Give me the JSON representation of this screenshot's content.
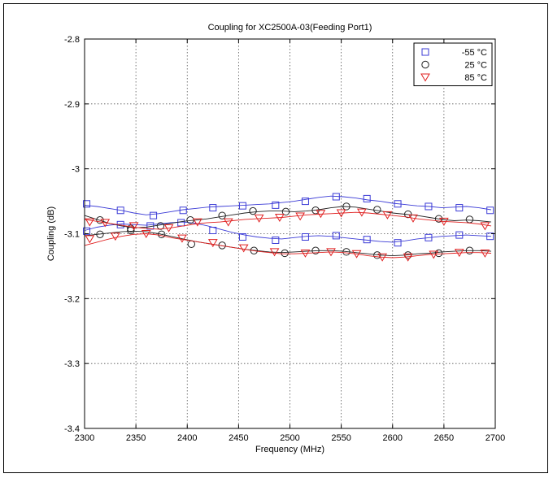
{
  "chart_data": {
    "type": "line",
    "title": "Coupling for XC2500A-03(Feeding Port1)",
    "xlabel": "Frequency (MHz)",
    "ylabel": "Coupling (dB)",
    "xlim": [
      2300,
      2700
    ],
    "ylim": [
      -3.4,
      -2.8
    ],
    "x_ticks": [
      2300,
      2350,
      2400,
      2450,
      2500,
      2550,
      2600,
      2650,
      2700
    ],
    "y_ticks": [
      -3.4,
      -3.3,
      -3.2,
      -3.1,
      -3.0,
      -2.9,
      -2.8
    ],
    "x_tick_labels": [
      "2300",
      "2350",
      "2400",
      "2450",
      "2500",
      "2550",
      "2600",
      "2650",
      "2700"
    ],
    "y_tick_labels": [
      "-3.4",
      "-3.3",
      "-3.2",
      "-3.1",
      "-3",
      "-2.9",
      "-2.8"
    ],
    "grid": true,
    "legend_position": "top-right",
    "legend": [
      {
        "label": "-55 °C",
        "marker": "square",
        "color": "#3b3bd6"
      },
      {
        "label": "25 °C",
        "marker": "circle",
        "color": "#222222"
      },
      {
        "label": "85 °C",
        "marker": "triangle-down",
        "color": "#e02020"
      }
    ],
    "series": [
      {
        "name": "-55 °C",
        "marker": "square",
        "color": "#3b3bd6",
        "x": [
          2300,
          2312,
          2324,
          2336,
          2348,
          2360,
          2372,
          2384,
          2396,
          2408,
          2420,
          2432,
          2444,
          2456,
          2468,
          2480,
          2492,
          2504,
          2516,
          2528,
          2540,
          2552,
          2564,
          2576,
          2588,
          2600,
          2612,
          2624,
          2636,
          2648,
          2660,
          2672,
          2684,
          2696
        ],
        "y": [
          -3.056,
          -3.058,
          -3.061,
          -3.064,
          -3.068,
          -3.071,
          -3.069,
          -3.066,
          -3.063,
          -3.061,
          -3.059,
          -3.058,
          -3.057,
          -3.056,
          -3.055,
          -3.054,
          -3.052,
          -3.05,
          -3.047,
          -3.044,
          -3.042,
          -3.043,
          -3.045,
          -3.048,
          -3.05,
          -3.053,
          -3.055,
          -3.057,
          -3.058,
          -3.06,
          -3.059,
          -3.058,
          -3.06,
          -3.063
        ],
        "markers_x": [
          2302,
          2335,
          2367,
          2396,
          2425,
          2454,
          2486,
          2515,
          2545,
          2575,
          2605,
          2635,
          2665,
          2695
        ],
        "markers_y": [
          -3.054,
          -3.064,
          -3.072,
          -3.064,
          -3.06,
          -3.057,
          -3.056,
          -3.05,
          -3.043,
          -3.046,
          -3.054,
          -3.058,
          -3.06,
          -3.064
        ]
      },
      {
        "name": "-55 °C",
        "marker": "square",
        "color": "#3b3bd6",
        "x": [
          2300,
          2312,
          2324,
          2336,
          2348,
          2360,
          2372,
          2384,
          2396,
          2408,
          2420,
          2432,
          2444,
          2456,
          2468,
          2480,
          2492,
          2504,
          2516,
          2528,
          2540,
          2552,
          2564,
          2576,
          2588,
          2600,
          2612,
          2624,
          2636,
          2648,
          2660,
          2672,
          2684,
          2696
        ],
        "y": [
          -3.095,
          -3.09,
          -3.087,
          -3.085,
          -3.086,
          -3.087,
          -3.085,
          -3.083,
          -3.082,
          -3.084,
          -3.088,
          -3.093,
          -3.098,
          -3.102,
          -3.105,
          -3.107,
          -3.108,
          -3.106,
          -3.104,
          -3.103,
          -3.104,
          -3.106,
          -3.108,
          -3.11,
          -3.112,
          -3.113,
          -3.111,
          -3.108,
          -3.106,
          -3.104,
          -3.103,
          -3.102,
          -3.103,
          -3.104
        ],
        "markers_x": [
          2302,
          2335,
          2364,
          2394,
          2425,
          2454,
          2486,
          2515,
          2545,
          2575,
          2605,
          2635,
          2665,
          2695
        ],
        "markers_y": [
          -3.096,
          -3.086,
          -3.088,
          -3.083,
          -3.095,
          -3.105,
          -3.11,
          -3.105,
          -3.103,
          -3.109,
          -3.114,
          -3.106,
          -3.102,
          -3.104
        ]
      },
      {
        "name": "25 °C",
        "marker": "circle",
        "color": "#222222",
        "x": [
          2300,
          2312,
          2324,
          2336,
          2348,
          2360,
          2372,
          2384,
          2396,
          2408,
          2420,
          2432,
          2444,
          2456,
          2468,
          2480,
          2492,
          2504,
          2516,
          2528,
          2540,
          2552,
          2564,
          2576,
          2588,
          2600,
          2612,
          2624,
          2636,
          2648,
          2660,
          2672,
          2684,
          2696
        ],
        "y": [
          -3.072,
          -3.078,
          -3.084,
          -3.088,
          -3.091,
          -3.09,
          -3.087,
          -3.084,
          -3.081,
          -3.079,
          -3.077,
          -3.074,
          -3.071,
          -3.068,
          -3.066,
          -3.065,
          -3.065,
          -3.066,
          -3.065,
          -3.063,
          -3.06,
          -3.058,
          -3.059,
          -3.062,
          -3.065,
          -3.068,
          -3.07,
          -3.072,
          -3.075,
          -3.078,
          -3.08,
          -3.079,
          -3.08,
          -3.082
        ],
        "markers_x": [
          2315,
          2345,
          2374,
          2403,
          2434,
          2464,
          2496,
          2525,
          2555,
          2585,
          2615,
          2645,
          2675
        ],
        "markers_y": [
          -3.079,
          -3.092,
          -3.088,
          -3.079,
          -3.072,
          -3.065,
          -3.066,
          -3.064,
          -3.058,
          -3.063,
          -3.07,
          -3.077,
          -3.078
        ]
      },
      {
        "name": "25 °C",
        "marker": "circle",
        "color": "#222222",
        "x": [
          2300,
          2312,
          2324,
          2336,
          2348,
          2360,
          2372,
          2384,
          2396,
          2408,
          2420,
          2432,
          2444,
          2456,
          2468,
          2480,
          2492,
          2504,
          2516,
          2528,
          2540,
          2552,
          2564,
          2576,
          2588,
          2600,
          2612,
          2624,
          2636,
          2648,
          2660,
          2672,
          2684,
          2696
        ],
        "y": [
          -3.103,
          -3.101,
          -3.099,
          -3.097,
          -3.096,
          -3.097,
          -3.1,
          -3.104,
          -3.108,
          -3.112,
          -3.115,
          -3.118,
          -3.121,
          -3.124,
          -3.126,
          -3.128,
          -3.129,
          -3.128,
          -3.127,
          -3.126,
          -3.126,
          -3.127,
          -3.129,
          -3.131,
          -3.133,
          -3.134,
          -3.133,
          -3.131,
          -3.13,
          -3.128,
          -3.127,
          -3.126,
          -3.126,
          -3.127
        ],
        "markers_x": [
          2315,
          2345,
          2375,
          2404,
          2434,
          2465,
          2495,
          2525,
          2555,
          2585,
          2615,
          2645,
          2675
        ],
        "markers_y": [
          -3.101,
          -3.095,
          -3.101,
          -3.116,
          -3.118,
          -3.126,
          -3.13,
          -3.126,
          -3.128,
          -3.133,
          -3.133,
          -3.13,
          -3.126
        ]
      },
      {
        "name": "85 °C",
        "marker": "triangle-down",
        "color": "#e02020",
        "x": [
          2300,
          2312,
          2324,
          2336,
          2348,
          2360,
          2372,
          2384,
          2396,
          2408,
          2420,
          2432,
          2444,
          2456,
          2468,
          2480,
          2492,
          2504,
          2516,
          2528,
          2540,
          2552,
          2564,
          2576,
          2588,
          2600,
          2612,
          2624,
          2636,
          2648,
          2660,
          2672,
          2684,
          2696
        ],
        "y": [
          -3.078,
          -3.081,
          -3.084,
          -3.087,
          -3.09,
          -3.092,
          -3.093,
          -3.091,
          -3.088,
          -3.085,
          -3.083,
          -3.082,
          -3.08,
          -3.078,
          -3.077,
          -3.076,
          -3.075,
          -3.073,
          -3.071,
          -3.07,
          -3.069,
          -3.068,
          -3.067,
          -3.068,
          -3.07,
          -3.072,
          -3.074,
          -3.077,
          -3.079,
          -3.081,
          -3.082,
          -3.083,
          -3.085,
          -3.088
        ],
        "markers_x": [
          2305,
          2320,
          2348,
          2382,
          2410,
          2440,
          2470,
          2490,
          2510,
          2530,
          2550,
          2570,
          2595,
          2620,
          2650,
          2690
        ],
        "markers_y": [
          -3.082,
          -3.083,
          -3.088,
          -3.091,
          -3.082,
          -3.082,
          -3.076,
          -3.075,
          -3.073,
          -3.069,
          -3.068,
          -3.067,
          -3.071,
          -3.076,
          -3.081,
          -3.088
        ]
      },
      {
        "name": "85 °C",
        "marker": "triangle-down",
        "color": "#e02020",
        "x": [
          2300,
          2312,
          2324,
          2336,
          2348,
          2360,
          2372,
          2384,
          2396,
          2408,
          2420,
          2432,
          2444,
          2456,
          2468,
          2480,
          2492,
          2504,
          2516,
          2528,
          2540,
          2552,
          2564,
          2576,
          2588,
          2600,
          2612,
          2624,
          2636,
          2648,
          2660,
          2672,
          2684,
          2696
        ],
        "y": [
          -3.118,
          -3.113,
          -3.108,
          -3.104,
          -3.101,
          -3.1,
          -3.102,
          -3.106,
          -3.109,
          -3.112,
          -3.115,
          -3.118,
          -3.121,
          -3.124,
          -3.127,
          -3.129,
          -3.131,
          -3.131,
          -3.13,
          -3.129,
          -3.128,
          -3.129,
          -3.131,
          -3.134,
          -3.136,
          -3.137,
          -3.136,
          -3.134,
          -3.132,
          -3.131,
          -3.13,
          -3.129,
          -3.129,
          -3.13
        ],
        "markers_x": [
          2305,
          2330,
          2360,
          2395,
          2425,
          2455,
          2485,
          2515,
          2540,
          2565,
          2590,
          2615,
          2640,
          2665,
          2690
        ],
        "markers_y": [
          -3.108,
          -3.104,
          -3.1,
          -3.107,
          -3.114,
          -3.122,
          -3.128,
          -3.13,
          -3.128,
          -3.131,
          -3.136,
          -3.136,
          -3.132,
          -3.129,
          -3.13
        ]
      }
    ]
  }
}
